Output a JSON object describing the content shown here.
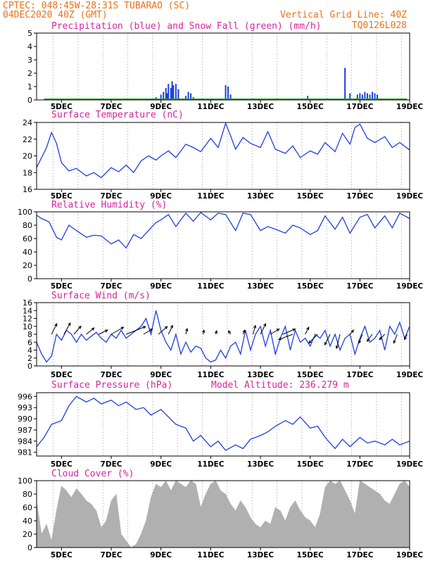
{
  "header": {
    "line1": "CPTEC:  048:45W-28:31S  TUBARAO (SC)",
    "line2": "04DEC2020 40Z (GMT)",
    "grid_note": "Vertical Grid Line: 40Z",
    "code": "TQ0126L028"
  },
  "colors": {
    "header": "#e8731a",
    "title": "#d6249f",
    "precip": "#1f3fe0",
    "snow": "#21a821",
    "line": "#1f3fe0",
    "wind_arrow": "#000000",
    "cloud": "#b0b0b0"
  },
  "x_ticks": [
    "5DEC",
    "7DEC",
    "9DEC",
    "11DEC",
    "13DEC",
    "15DEC",
    "17DEC",
    "19DEC"
  ],
  "chart_data": [
    {
      "id": "precip",
      "type": "bar",
      "title": "Precipitation (blue) and Snow Fall (green) (mm/h)",
      "ylim": [
        0,
        5
      ],
      "yticks": [
        "0",
        "1",
        "2",
        "3",
        "4",
        "5"
      ],
      "x": [
        8.6,
        8.8,
        9.0,
        9.1,
        9.2,
        9.25,
        9.3,
        9.4,
        9.45,
        9.5,
        9.6,
        9.7,
        10.0,
        10.1,
        10.2,
        10.3,
        10.5,
        11.2,
        11.6,
        11.7,
        11.8,
        14.9,
        16.4,
        16.6,
        16.9,
        17.0,
        17.1,
        17.2,
        17.3,
        17.4,
        17.5,
        17.6,
        17.7
      ],
      "values": [
        0.1,
        0.2,
        0.4,
        0.6,
        0.9,
        0.5,
        1.2,
        0.9,
        1.4,
        1.1,
        1.2,
        0.8,
        0.3,
        0.6,
        0.5,
        0.2,
        0.1,
        0.1,
        1.1,
        1.0,
        0.4,
        0.3,
        2.4,
        0.5,
        0.4,
        0.5,
        0.4,
        0.6,
        0.5,
        0.4,
        0.6,
        0.5,
        0.4
      ],
      "snow": "0"
    },
    {
      "id": "temperature",
      "type": "line",
      "title": "Surface Temperature (nC)",
      "ylim": [
        16,
        24
      ],
      "yticks": [
        "16",
        "18",
        "20",
        "22",
        "24"
      ],
      "x": [
        4.0,
        4.2,
        4.4,
        4.6,
        4.8,
        5.0,
        5.3,
        5.6,
        6.0,
        6.3,
        6.6,
        7.0,
        7.3,
        7.6,
        7.9,
        8.2,
        8.5,
        8.8,
        9.0,
        9.3,
        9.6,
        10.0,
        10.3,
        10.6,
        11.0,
        11.3,
        11.6,
        11.8,
        12.0,
        12.3,
        12.6,
        13.0,
        13.3,
        13.6,
        14.0,
        14.3,
        14.6,
        15.0,
        15.3,
        15.6,
        16.0,
        16.3,
        16.6,
        16.8,
        17.0,
        17.3,
        17.6,
        18.0,
        18.3,
        18.6,
        19.0
      ],
      "values": [
        18.6,
        19.8,
        21.0,
        22.8,
        21.5,
        19.2,
        18.2,
        18.5,
        17.6,
        18.0,
        17.4,
        18.6,
        18.1,
        18.9,
        18.0,
        19.4,
        20.0,
        19.5,
        20.0,
        20.6,
        19.8,
        21.4,
        21.0,
        20.5,
        22.1,
        21.0,
        23.9,
        22.4,
        20.8,
        22.2,
        21.5,
        21.0,
        22.9,
        20.8,
        20.3,
        21.2,
        19.8,
        20.6,
        20.2,
        21.6,
        20.5,
        22.7,
        21.4,
        23.4,
        23.8,
        22.1,
        21.6,
        22.3,
        21.0,
        21.6,
        20.7
      ]
    },
    {
      "id": "humidity",
      "type": "line",
      "title": "Relative Humidity (%)",
      "ylim": [
        0,
        100
      ],
      "yticks": [
        "0",
        "20",
        "40",
        "60",
        "80",
        "100"
      ],
      "x": [
        4.0,
        4.2,
        4.5,
        4.8,
        5.0,
        5.3,
        5.6,
        6.0,
        6.3,
        6.6,
        7.0,
        7.3,
        7.6,
        7.9,
        8.2,
        8.5,
        8.8,
        9.0,
        9.3,
        9.6,
        10.0,
        10.3,
        10.6,
        11.0,
        11.3,
        11.6,
        12.0,
        12.3,
        12.6,
        13.0,
        13.3,
        13.6,
        14.0,
        14.3,
        14.6,
        15.0,
        15.3,
        15.6,
        16.0,
        16.3,
        16.6,
        17.0,
        17.3,
        17.6,
        18.0,
        18.3,
        18.6,
        19.0
      ],
      "values": [
        95,
        90,
        85,
        62,
        58,
        80,
        72,
        62,
        65,
        64,
        52,
        58,
        46,
        66,
        60,
        72,
        84,
        88,
        96,
        78,
        98,
        86,
        99,
        88,
        98,
        96,
        72,
        98,
        96,
        72,
        78,
        74,
        68,
        80,
        76,
        66,
        72,
        94,
        74,
        92,
        68,
        92,
        96,
        76,
        94,
        76,
        98,
        90
      ]
    },
    {
      "id": "wind",
      "type": "line",
      "title": "Surface Wind (m/s)",
      "ylim": [
        0,
        16
      ],
      "yticks": [
        "0",
        "2",
        "4",
        "6",
        "8",
        "10",
        "12",
        "14",
        "16"
      ],
      "x": [
        4.0,
        4.2,
        4.4,
        4.6,
        4.8,
        5.0,
        5.2,
        5.4,
        5.6,
        5.8,
        6.0,
        6.2,
        6.4,
        6.6,
        6.8,
        7.0,
        7.2,
        7.4,
        7.6,
        7.8,
        8.0,
        8.2,
        8.4,
        8.6,
        8.8,
        9.0,
        9.2,
        9.4,
        9.6,
        9.8,
        10.0,
        10.2,
        10.4,
        10.6,
        10.8,
        11.0,
        11.2,
        11.4,
        11.6,
        11.8,
        12.0,
        12.2,
        12.4,
        12.6,
        12.8,
        13.0,
        13.2,
        13.4,
        13.6,
        13.8,
        14.0,
        14.2,
        14.4,
        14.6,
        14.8,
        15.0,
        15.2,
        15.4,
        15.6,
        15.8,
        16.0,
        16.2,
        16.4,
        16.6,
        16.8,
        17.0,
        17.2,
        17.4,
        17.6,
        17.8,
        18.0,
        18.2,
        18.4,
        18.6,
        18.8,
        19.0
      ],
      "values": [
        6.0,
        3.0,
        1.0,
        2.5,
        8.0,
        6.5,
        9.0,
        8.0,
        6.0,
        8.0,
        6.5,
        7.5,
        8.5,
        7.0,
        6.0,
        8.0,
        7.0,
        9.0,
        7.0,
        8.0,
        9.0,
        10.0,
        12.0,
        8.0,
        14.0,
        9.0,
        6.0,
        4.0,
        8.0,
        3.0,
        6.0,
        3.5,
        5.0,
        4.5,
        2.0,
        1.0,
        1.5,
        4.0,
        2.0,
        5.0,
        6.0,
        3.0,
        9.0,
        4.0,
        8.0,
        10.0,
        5.0,
        9.0,
        3.0,
        7.0,
        10.0,
        4.0,
        9.0,
        6.0,
        7.0,
        5.0,
        8.0,
        7.0,
        9.0,
        5.0,
        8.0,
        4.0,
        7.0,
        8.0,
        3.0,
        7.0,
        10.0,
        6.0,
        7.0,
        9.0,
        4.0,
        10.0,
        8.0,
        11.0,
        7.0,
        10.0
      ],
      "arrows": [
        {
          "x": 4.6,
          "u": 1.5,
          "v": 3.0
        },
        {
          "x": 5.1,
          "u": 1.8,
          "v": 3.2
        },
        {
          "x": 5.5,
          "u": 2.0,
          "v": 2.3
        },
        {
          "x": 6.0,
          "u": 2.2,
          "v": 1.8
        },
        {
          "x": 6.5,
          "u": 2.5,
          "v": 1.2
        },
        {
          "x": 7.0,
          "u": 3.5,
          "v": 2.0
        },
        {
          "x": 7.6,
          "u": 5.5,
          "v": 2.2
        },
        {
          "x": 8.3,
          "u": 2.5,
          "v": 1.5
        },
        {
          "x": 8.9,
          "u": 2.5,
          "v": 2.2
        },
        {
          "x": 9.3,
          "u": 1.2,
          "v": 2.5
        },
        {
          "x": 10.0,
          "u": 0.4,
          "v": 1.6
        },
        {
          "x": 10.7,
          "u": 0.2,
          "v": 1.2
        },
        {
          "x": 11.2,
          "u": 0.3,
          "v": 1.0
        },
        {
          "x": 11.8,
          "u": -0.6,
          "v": 1.0
        },
        {
          "x": 12.3,
          "u": 0.5,
          "v": 1.2
        },
        {
          "x": 12.7,
          "u": 0.7,
          "v": 2.5
        },
        {
          "x": 13.0,
          "u": 1.5,
          "v": 3.0
        },
        {
          "x": 13.4,
          "u": 2.5,
          "v": 1.5
        },
        {
          "x": 13.9,
          "u": 3.5,
          "v": 1.5
        },
        {
          "x": 14.3,
          "u": -4.0,
          "v": -1.5
        },
        {
          "x": 14.8,
          "u": 1.0,
          "v": 2.0
        },
        {
          "x": 15.3,
          "u": -2.5,
          "v": -2.5
        },
        {
          "x": 15.8,
          "u": -1.5,
          "v": -3.0
        },
        {
          "x": 16.2,
          "u": -1.0,
          "v": -4.0
        },
        {
          "x": 16.6,
          "u": 1.0,
          "v": 1.2
        },
        {
          "x": 17.1,
          "u": -1.0,
          "v": -2.5
        },
        {
          "x": 17.5,
          "u": -1.5,
          "v": -2.0
        },
        {
          "x": 18.0,
          "u": -1.5,
          "v": -1.5
        },
        {
          "x": 18.5,
          "u": -1.0,
          "v": -2.5
        },
        {
          "x": 18.9,
          "u": -0.8,
          "v": -1.5
        }
      ]
    },
    {
      "id": "pressure",
      "type": "line",
      "title": "Surface Pressure (hPa)",
      "annotation": "Model Altitude: 236.279 m",
      "ylim": [
        980,
        997
      ],
      "yticks": [
        "981",
        "984",
        "987",
        "990",
        "993",
        "996"
      ],
      "ytick_values": [
        981,
        984,
        987,
        990,
        993,
        996
      ],
      "x": [
        4.0,
        4.3,
        4.6,
        5.0,
        5.3,
        5.6,
        6.0,
        6.3,
        6.6,
        7.0,
        7.3,
        7.6,
        8.0,
        8.3,
        8.6,
        9.0,
        9.3,
        9.6,
        10.0,
        10.3,
        10.6,
        11.0,
        11.3,
        11.6,
        12.0,
        12.3,
        12.6,
        13.0,
        13.3,
        13.6,
        14.0,
        14.3,
        14.6,
        15.0,
        15.3,
        15.6,
        16.0,
        16.3,
        16.6,
        17.0,
        17.3,
        17.6,
        18.0,
        18.3,
        18.6,
        19.0
      ],
      "values": [
        982.5,
        985.0,
        988.5,
        989.5,
        993.5,
        996.0,
        994.5,
        995.5,
        994.0,
        995.0,
        993.5,
        994.5,
        992.5,
        993.0,
        991.0,
        992.5,
        990.5,
        988.5,
        987.5,
        984.0,
        985.5,
        982.5,
        984.0,
        981.5,
        983.0,
        982.0,
        984.5,
        985.5,
        986.5,
        988.0,
        989.5,
        988.5,
        990.5,
        987.5,
        988.0,
        985.0,
        982.0,
        984.5,
        982.5,
        985.0,
        983.5,
        984.0,
        983.0,
        984.5,
        983.0,
        984.0
      ]
    },
    {
      "id": "cloud",
      "type": "area",
      "title": "Cloud Cover (%)",
      "ylim": [
        0,
        100
      ],
      "yticks": [
        "0",
        "20",
        "40",
        "60",
        "80",
        "100"
      ],
      "x": [
        4.0,
        4.2,
        4.4,
        4.6,
        4.8,
        5.0,
        5.2,
        5.4,
        5.6,
        5.8,
        6.0,
        6.2,
        6.4,
        6.6,
        6.8,
        7.0,
        7.2,
        7.4,
        7.6,
        7.8,
        8.0,
        8.2,
        8.4,
        8.6,
        8.8,
        9.0,
        9.2,
        9.4,
        9.6,
        9.8,
        10.0,
        10.2,
        10.4,
        10.6,
        10.8,
        11.0,
        11.2,
        11.4,
        11.6,
        11.8,
        12.0,
        12.2,
        12.4,
        12.6,
        12.8,
        13.0,
        13.2,
        13.4,
        13.6,
        13.8,
        14.0,
        14.2,
        14.4,
        14.6,
        14.8,
        15.0,
        15.2,
        15.4,
        15.6,
        15.8,
        16.0,
        16.2,
        16.4,
        16.6,
        16.8,
        17.0,
        17.2,
        17.4,
        17.6,
        17.8,
        18.0,
        18.2,
        18.4,
        18.6,
        18.8,
        19.0
      ],
      "values": [
        70,
        20,
        35,
        10,
        55,
        92,
        85,
        75,
        88,
        80,
        70,
        65,
        55,
        30,
        40,
        70,
        80,
        20,
        10,
        0,
        5,
        20,
        40,
        75,
        95,
        90,
        100,
        85,
        100,
        95,
        90,
        100,
        95,
        60,
        80,
        95,
        100,
        85,
        80,
        65,
        55,
        70,
        60,
        45,
        35,
        30,
        40,
        35,
        60,
        55,
        40,
        60,
        70,
        55,
        45,
        40,
        30,
        50,
        90,
        100,
        95,
        100,
        85,
        70,
        50,
        100,
        95,
        90,
        85,
        80,
        70,
        65,
        80,
        95,
        100,
        90
      ]
    }
  ]
}
